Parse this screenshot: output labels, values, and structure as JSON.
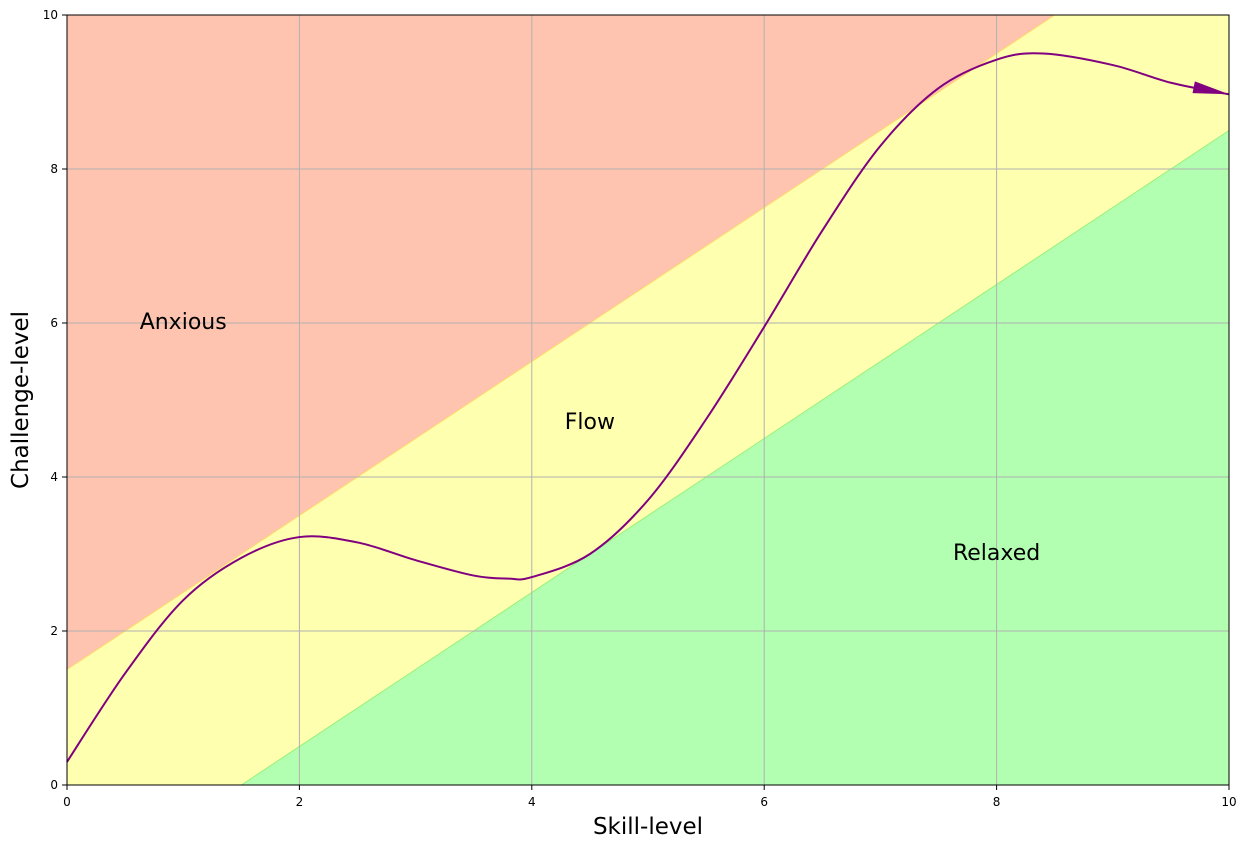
{
  "chart_data": {
    "type": "area",
    "title": "",
    "xlabel": "Skill-level",
    "ylabel": "Challenge-level",
    "xlim": [
      0,
      10
    ],
    "ylim": [
      0,
      10
    ],
    "x_ticks": [
      0,
      2,
      4,
      6,
      8,
      10
    ],
    "y_ticks": [
      0,
      2,
      4,
      6,
      8,
      10
    ],
    "grid": true,
    "regions": [
      {
        "label": "Anxious",
        "color": "#ffc4b0",
        "lower_boundary": {
          "intercept": 1.5,
          "slope": 1
        },
        "label_at": {
          "x": 1.0,
          "y": 6.0
        }
      },
      {
        "label": "Flow",
        "color": "#ffffb0",
        "label_at": {
          "x": 4.5,
          "y": 4.7
        }
      },
      {
        "label": "Relaxed",
        "color": "#b2ffb2",
        "upper_boundary": {
          "intercept": -1.5,
          "slope": 1
        },
        "label_at": {
          "x": 8.0,
          "y": 3.0
        }
      }
    ],
    "boundary_colors": {
      "upper": "#ffd86a",
      "lower": "#9af07a"
    },
    "series": [
      {
        "color": "#800080",
        "arrow_at_end": true,
        "points": [
          [
            0.0,
            0.3
          ],
          [
            0.5,
            1.45
          ],
          [
            1.0,
            2.4
          ],
          [
            1.5,
            2.95
          ],
          [
            2.0,
            3.22
          ],
          [
            2.5,
            3.15
          ],
          [
            3.0,
            2.92
          ],
          [
            3.5,
            2.72
          ],
          [
            3.8,
            2.68
          ],
          [
            4.0,
            2.7
          ],
          [
            4.5,
            3.0
          ],
          [
            5.0,
            3.7
          ],
          [
            5.5,
            4.75
          ],
          [
            6.0,
            5.95
          ],
          [
            6.5,
            7.2
          ],
          [
            7.0,
            8.3
          ],
          [
            7.5,
            9.05
          ],
          [
            8.0,
            9.42
          ],
          [
            8.4,
            9.5
          ],
          [
            9.0,
            9.35
          ],
          [
            9.5,
            9.12
          ],
          [
            10.0,
            8.97
          ]
        ]
      }
    ]
  }
}
